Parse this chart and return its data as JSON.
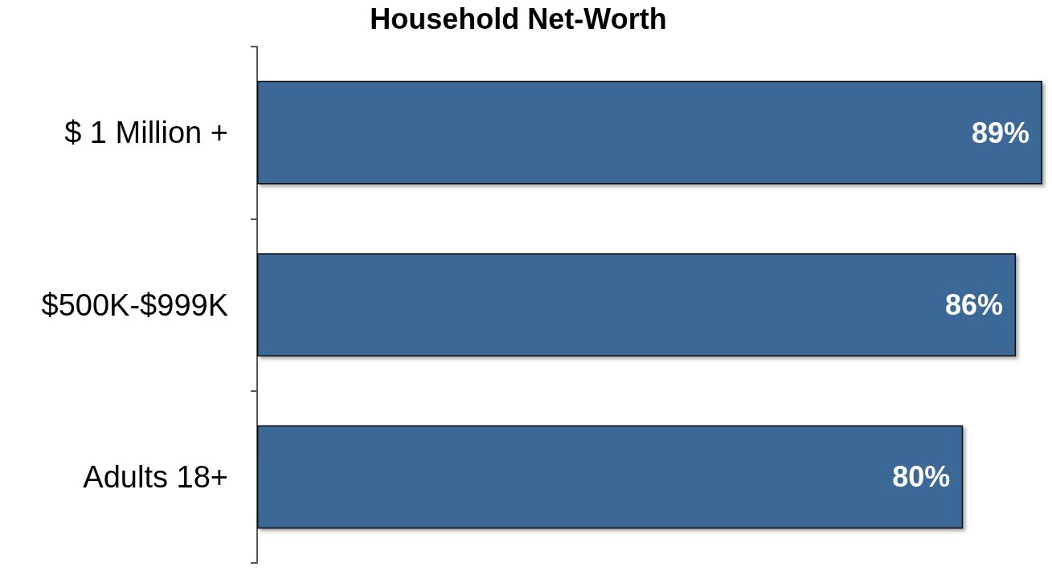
{
  "chart_data": {
    "type": "bar",
    "orientation": "horizontal",
    "title": "Household Net-Worth",
    "categories": [
      "$ 1 Million +",
      "$500K-$999K",
      "Adults 18+"
    ],
    "values": [
      89,
      86,
      80
    ],
    "value_labels": [
      "89%",
      "86%",
      "80%"
    ],
    "color": "#3b6796",
    "tick_labels": "y"
  }
}
